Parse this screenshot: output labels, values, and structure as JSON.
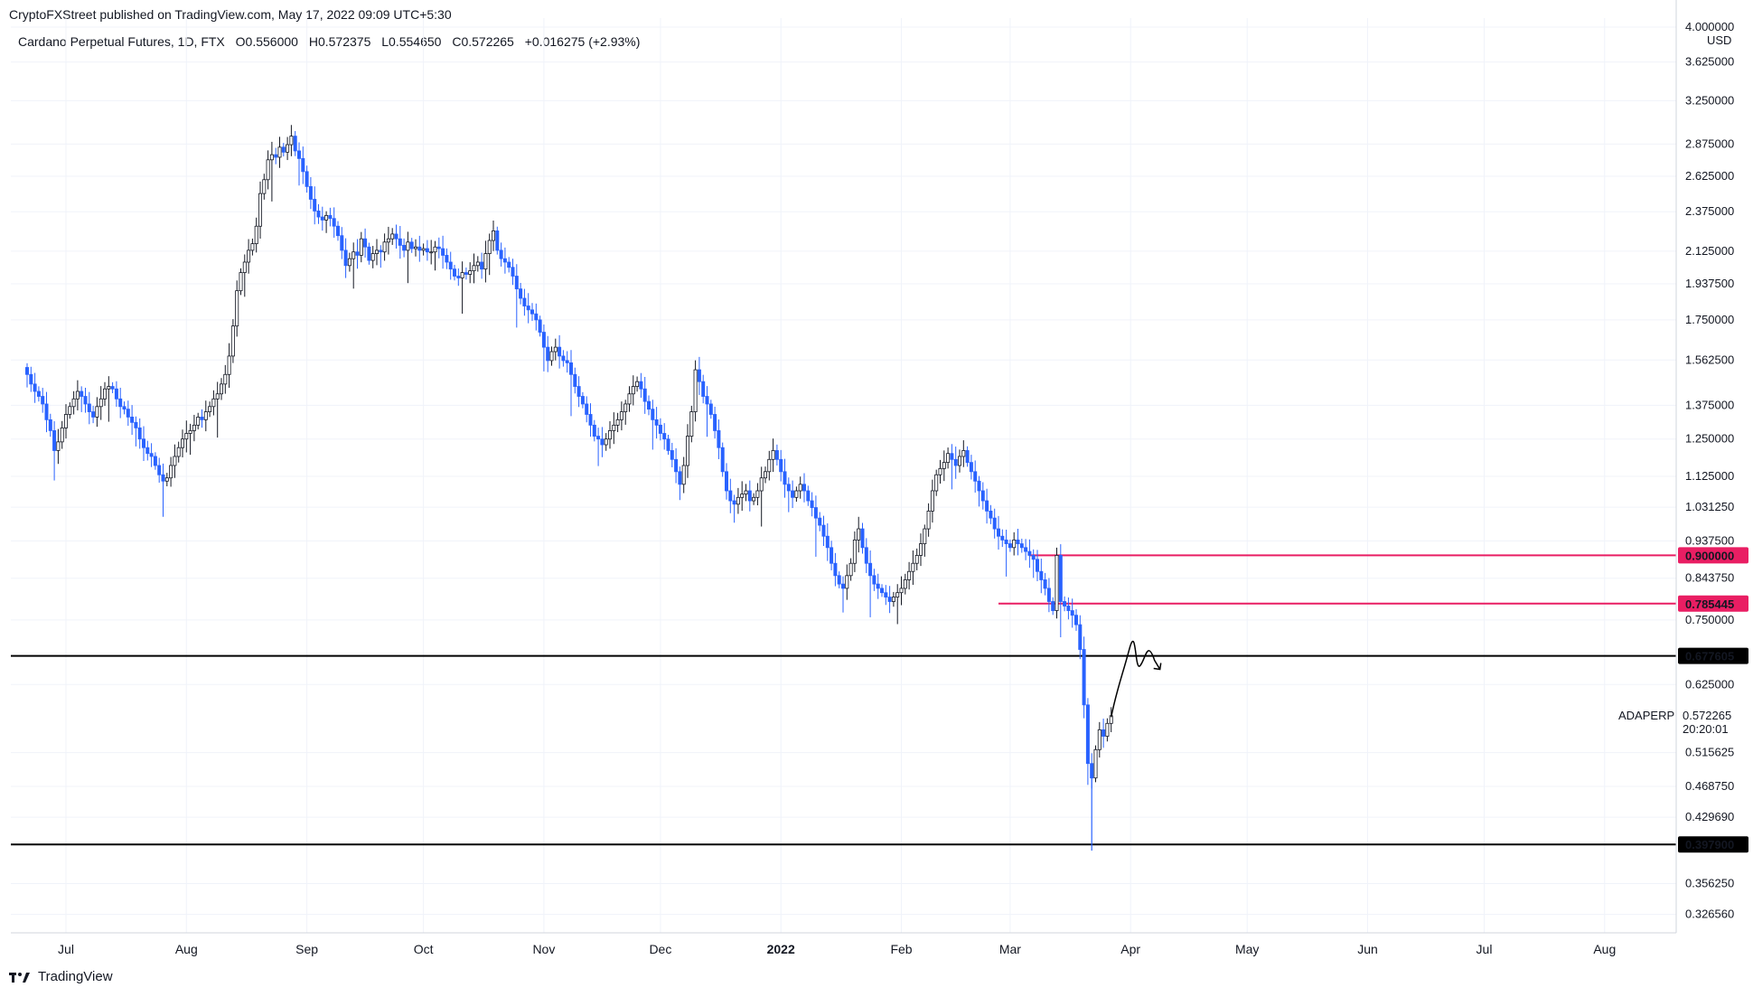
{
  "header": {
    "publisher_line": "CryptoFXStreet published on TradingView.com, May 17, 2022 09:09 UTC+5:30",
    "symbol": "Cardano Perpetual Futures, 1D, FTX",
    "open": "O0.556000",
    "high": "H0.572375",
    "low": "L0.554650",
    "close": "C0.572265",
    "change": "+0.016275 (+2.93%)"
  },
  "footer": {
    "brand": "TradingView"
  },
  "colors": {
    "up": "#131722",
    "down": "#2962ff",
    "pink": "#e91e63",
    "black": "#000000",
    "grid": "#f0f3fa"
  },
  "chart_data": {
    "type": "candlestick",
    "title": "Cardano Perpetual Futures, 1D, FTX",
    "y_scale": "log",
    "y_unit": "USD",
    "ylim": [
      0.31,
      4.0
    ],
    "y_ticks": [
      "4.000000",
      "3.625000",
      "3.250000",
      "2.875000",
      "2.625000",
      "2.375000",
      "2.125000",
      "1.937500",
      "1.750000",
      "1.562500",
      "1.375000",
      "1.250000",
      "1.125000",
      "1.031250",
      "0.937500",
      "0.843750",
      "0.750000",
      "0.625000",
      "0.515625",
      "0.468750",
      "0.429690",
      "0.356250",
      "0.326560"
    ],
    "x_ticks": [
      "Jul",
      "Aug",
      "Sep",
      "Oct",
      "Nov",
      "Dec",
      "2022",
      "Feb",
      "Mar",
      "Apr",
      "May",
      "Jun",
      "Jul",
      "Aug"
    ],
    "grid": true,
    "last_price": {
      "label": "ADAPERP",
      "value": "0.572265",
      "countdown": "20:20:01"
    },
    "levels": [
      {
        "value": 0.9,
        "label": "0.900000",
        "color": "#e91e63"
      },
      {
        "value": 0.785445,
        "label": "0.785445",
        "color": "#e91e63"
      },
      {
        "value": 0.677605,
        "label": "0.677605",
        "color": "#000000"
      },
      {
        "value": 0.3979,
        "label": "0.397900",
        "color": "#000000"
      }
    ],
    "approx_closes": {
      "start": "2021-06-21",
      "interval": "1D",
      "values": [
        1.5,
        1.46,
        1.43,
        1.41,
        1.38,
        1.32,
        1.28,
        1.21,
        1.24,
        1.29,
        1.34,
        1.37,
        1.4,
        1.43,
        1.41,
        1.38,
        1.35,
        1.33,
        1.37,
        1.4,
        1.44,
        1.45,
        1.44,
        1.4,
        1.37,
        1.36,
        1.33,
        1.31,
        1.29,
        1.25,
        1.22,
        1.2,
        1.19,
        1.16,
        1.13,
        1.11,
        1.12,
        1.16,
        1.19,
        1.22,
        1.25,
        1.27,
        1.28,
        1.3,
        1.33,
        1.32,
        1.35,
        1.37,
        1.4,
        1.42,
        1.46,
        1.5,
        1.58,
        1.72,
        1.9,
        2.0,
        2.06,
        2.13,
        2.17,
        2.28,
        2.5,
        2.6,
        2.75,
        2.79,
        2.77,
        2.85,
        2.81,
        2.87,
        2.94,
        2.82,
        2.76,
        2.66,
        2.55,
        2.46,
        2.38,
        2.34,
        2.32,
        2.35,
        2.33,
        2.28,
        2.22,
        2.13,
        2.04,
        2.08,
        2.12,
        2.1,
        2.2,
        2.15,
        2.07,
        2.11,
        2.13,
        2.12,
        2.18,
        2.2,
        2.23,
        2.2,
        2.16,
        2.13,
        2.18,
        2.14,
        2.15,
        2.13,
        2.14,
        2.12,
        2.12,
        2.15,
        2.14,
        2.1,
        2.06,
        2.02,
        1.98,
        1.97,
        2.0,
        1.99,
        2.01,
        2.04,
        2.06,
        2.02,
        2.11,
        2.19,
        2.25,
        2.13,
        2.08,
        2.06,
        2.03,
        1.98,
        1.91,
        1.86,
        1.82,
        1.8,
        1.78,
        1.75,
        1.69,
        1.62,
        1.56,
        1.6,
        1.62,
        1.58,
        1.56,
        1.55,
        1.5,
        1.45,
        1.41,
        1.38,
        1.34,
        1.3,
        1.26,
        1.25,
        1.23,
        1.25,
        1.28,
        1.3,
        1.32,
        1.35,
        1.38,
        1.42,
        1.45,
        1.47,
        1.44,
        1.39,
        1.36,
        1.32,
        1.3,
        1.27,
        1.25,
        1.21,
        1.18,
        1.14,
        1.1,
        1.16,
        1.26,
        1.35,
        1.52,
        1.47,
        1.41,
        1.38,
        1.34,
        1.28,
        1.22,
        1.14,
        1.08,
        1.05,
        1.04,
        1.06,
        1.07,
        1.08,
        1.05,
        1.06,
        1.08,
        1.12,
        1.14,
        1.18,
        1.21,
        1.18,
        1.14,
        1.1,
        1.08,
        1.06,
        1.08,
        1.1,
        1.08,
        1.05,
        1.03,
        1.0,
        0.98,
        0.95,
        0.92,
        0.88,
        0.85,
        0.83,
        0.82,
        0.85,
        0.88,
        0.94,
        0.97,
        0.92,
        0.88,
        0.85,
        0.83,
        0.82,
        0.81,
        0.8,
        0.79,
        0.8,
        0.81,
        0.82,
        0.84,
        0.86,
        0.88,
        0.9,
        0.93,
        0.97,
        1.02,
        1.08,
        1.13,
        1.15,
        1.17,
        1.2,
        1.18,
        1.16,
        1.19,
        1.21,
        1.17,
        1.14,
        1.11,
        1.08,
        1.05,
        1.02,
        1.0,
        0.97,
        0.95,
        0.94,
        0.93,
        0.92,
        0.94,
        0.93,
        0.92,
        0.91,
        0.9,
        0.89,
        0.86,
        0.84,
        0.82,
        0.79,
        0.77,
        0.9,
        0.79,
        0.78,
        0.77,
        0.76,
        0.74,
        0.69,
        0.59,
        0.5,
        0.48,
        0.52,
        0.55,
        0.54,
        0.56,
        0.572265
      ]
    }
  }
}
